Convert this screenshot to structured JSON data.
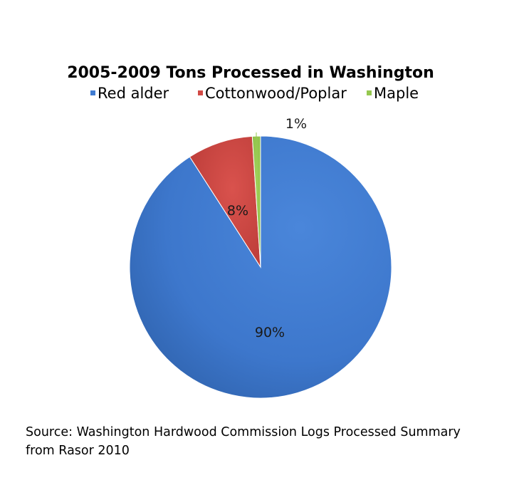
{
  "chart_data": {
    "type": "pie",
    "title": "2005-2009 Tons Processed in Washington",
    "legend_position": "top",
    "slices": [
      {
        "name": "Red alder",
        "value": 90,
        "label": "90%",
        "color": "#3f7bd1"
      },
      {
        "name": "Cottonwood/Poplar",
        "value": 8,
        "label": "8%",
        "color": "#d24a45"
      },
      {
        "name": "Maple",
        "value": 1,
        "label": "1%",
        "color": "#95c84f"
      }
    ]
  },
  "source_line1": "Source: Washington Hardwood Commission Logs Processed Summary",
  "source_line2": "from Rasor 2010"
}
